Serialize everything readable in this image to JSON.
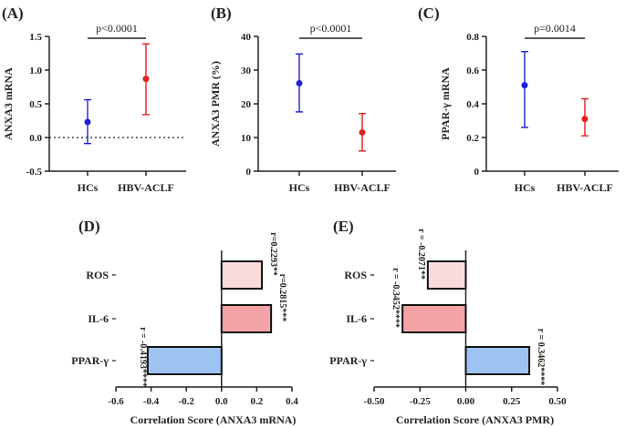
{
  "chart_data": [
    {
      "type": "errorbar",
      "panel": "(A)",
      "ylabel": "ANXA3 mRNA",
      "ylim": [
        -0.5,
        1.5
      ],
      "yticks": [
        -0.5,
        0.0,
        0.5,
        1.0,
        1.5
      ],
      "tick_labels": [
        "-0.5",
        "0.0",
        "0.5",
        "1.0",
        "1.5"
      ],
      "categories": [
        "HCs",
        "HBV-ACLF"
      ],
      "points": [
        {
          "category": "HCs",
          "mean": 0.23,
          "low": -0.09,
          "high": 0.56,
          "color": "#1f1fd6"
        },
        {
          "category": "HBV-ACLF",
          "mean": 0.87,
          "low": 0.34,
          "high": 1.39,
          "color": "#e02020"
        }
      ],
      "zero_line": true,
      "pvalue": "p<0.0001"
    },
    {
      "type": "errorbar",
      "panel": "(B)",
      "ylabel": "ANXA3 PMR (%)",
      "ylim": [
        0,
        40
      ],
      "yticks": [
        0,
        10,
        20,
        30,
        40
      ],
      "tick_labels": [
        "0",
        "10",
        "20",
        "30",
        "40"
      ],
      "categories": [
        "HCs",
        "HBV-ACLF"
      ],
      "points": [
        {
          "category": "HCs",
          "mean": 26.1,
          "low": 17.6,
          "high": 34.8,
          "color": "#1f1fd6"
        },
        {
          "category": "HBV-ACLF",
          "mean": 11.5,
          "low": 6.0,
          "high": 17.1,
          "color": "#e02020"
        }
      ],
      "zero_line": false,
      "pvalue": "p<0.0001"
    },
    {
      "type": "errorbar",
      "panel": "(C)",
      "ylabel": "PPAR-γ mRNA",
      "ylim": [
        0,
        0.8
      ],
      "yticks": [
        0,
        0.2,
        0.4,
        0.6,
        0.8
      ],
      "tick_labels": [
        "0",
        "0.2",
        "0.4",
        "0.6",
        "0.8"
      ],
      "categories": [
        "HCs",
        "HBV-ACLF"
      ],
      "points": [
        {
          "category": "HCs",
          "mean": 0.51,
          "low": 0.26,
          "high": 0.71,
          "color": "#1f1fd6"
        },
        {
          "category": "HBV-ACLF",
          "mean": 0.31,
          "low": 0.21,
          "high": 0.43,
          "color": "#e02020"
        }
      ],
      "zero_line": false,
      "pvalue": "p=0.0014"
    },
    {
      "type": "bar",
      "orientation": "horizontal",
      "panel": "(D)",
      "xlabel": "Correlation Score (ANXA3 mRNA)",
      "xlim": [
        -0.6,
        0.4
      ],
      "xticks": [
        -0.6,
        -0.4,
        -0.2,
        0.0,
        0.2,
        0.4
      ],
      "tick_labels": [
        "-0.6",
        "-0.4",
        "-0.2",
        "0.0",
        "0.2",
        "0.4"
      ],
      "categories": [
        "ROS",
        "IL-6",
        "PPAR-γ"
      ],
      "values": [
        0.2293,
        0.2815,
        -0.4193
      ],
      "value_labels": [
        "r=0.2293**",
        "r=0.2815***",
        "r = -0.4193****"
      ],
      "colors": [
        "#fadadd",
        "#f4a3a6",
        "#9dc3f2"
      ]
    },
    {
      "type": "bar",
      "orientation": "horizontal",
      "panel": "(E)",
      "xlabel": "Correlation Score (ANXA3 PMR)",
      "xlim": [
        -0.5,
        0.5
      ],
      "xticks": [
        -0.5,
        -0.25,
        0.0,
        0.25,
        0.5
      ],
      "tick_labels": [
        "-0.50",
        "-0.25",
        "0.00",
        "0.25",
        "0.50"
      ],
      "categories": [
        "ROS",
        "IL-6",
        "PPAR-γ"
      ],
      "values": [
        -0.2071,
        -0.3452,
        0.3462
      ],
      "value_labels": [
        "r = -0.2071**",
        "r = -0.3452****",
        "r = 0.3462****"
      ],
      "colors": [
        "#fadadd",
        "#f4a3a6",
        "#9dc3f2"
      ]
    }
  ]
}
